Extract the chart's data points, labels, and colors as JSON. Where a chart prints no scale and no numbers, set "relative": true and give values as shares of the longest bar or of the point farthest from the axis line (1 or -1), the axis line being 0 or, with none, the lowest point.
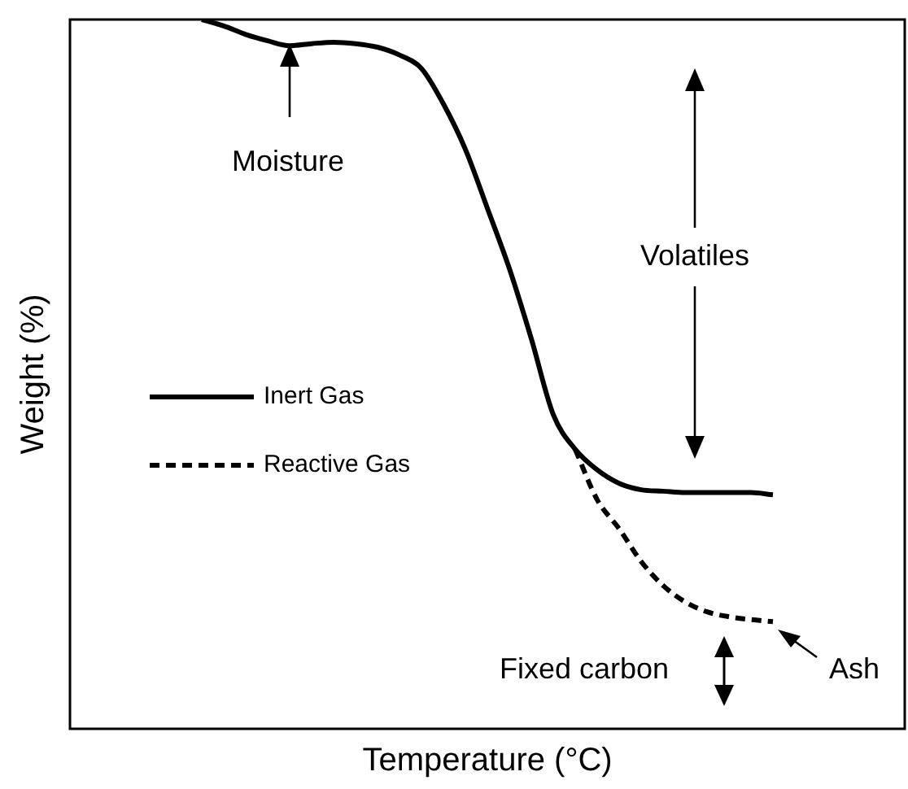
{
  "chart_data": {
    "type": "line",
    "relative": true,
    "xlabel": "Temperature (°C)",
    "ylabel": "Weight (%)",
    "legend": "left",
    "categories": [
      null,
      null,
      null,
      null,
      null,
      null,
      null,
      null,
      null,
      null,
      null,
      null,
      null,
      null,
      null,
      null,
      null,
      null,
      null,
      null,
      null,
      null,
      null,
      null,
      null,
      null,
      null,
      null,
      null,
      null,
      null,
      null,
      null,
      null,
      null,
      null,
      null,
      null,
      null
    ],
    "series": [
      {
        "name": "Inert Gas",
        "color": "#000000",
        "line_style": "solid",
        "values": [
          null,
          null,
          null,
          null,
          null,
          null,
          1,
          0.991,
          0.979,
          0.97,
          0.963,
          0.966,
          0.968,
          0.966,
          0.961,
          0.95,
          0.931,
          0.881,
          0.817,
          0.734,
          0.649,
          0.55,
          0.443,
          0.394,
          0.365,
          0.346,
          0.337,
          0.335,
          0.333,
          0.333,
          0.333,
          0.333,
          0.33,
          null,
          null,
          null,
          null,
          null,
          null
        ]
      },
      {
        "name": "Reactive Gas",
        "color": "#000000",
        "line_style": "dashed",
        "values": [
          null,
          null,
          null,
          null,
          null,
          null,
          null,
          null,
          null,
          null,
          null,
          null,
          null,
          null,
          null,
          null,
          null,
          null,
          null,
          null,
          null,
          null,
          null,
          0.394,
          0.323,
          0.282,
          0.236,
          0.202,
          0.179,
          0.165,
          0.158,
          0.154,
          0.151,
          null,
          null,
          null,
          null,
          null,
          null
        ]
      }
    ],
    "annotations": [
      "Moisture",
      "Volatiles",
      "Fixed carbon",
      "Ash"
    ]
  }
}
